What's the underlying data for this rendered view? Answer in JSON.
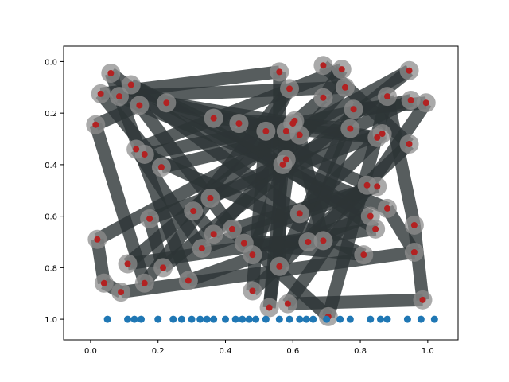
{
  "chart_data": {
    "type": "scatter",
    "title": "",
    "xlabel": "",
    "ylabel": "",
    "xlim": [
      -0.08,
      1.09
    ],
    "ylim": [
      1.08,
      -0.06
    ],
    "y_inverted": true,
    "grid": false,
    "x_ticks": [
      "0.0",
      "0.2",
      "0.4",
      "0.6",
      "0.8",
      "1.0"
    ],
    "y_ticks": [
      "0.0",
      "0.2",
      "0.4",
      "0.6",
      "0.8",
      "1.0"
    ],
    "colors": {
      "path_line": "#2d3436",
      "node_halo": "#8e8e8e",
      "node_dot": "#b22222",
      "baseline_dot": "#1f77b4"
    },
    "path_nodes": [
      [
        0.69,
        0.015
      ],
      [
        0.945,
        0.32
      ],
      [
        0.48,
        0.89
      ],
      [
        0.52,
        0.27
      ],
      [
        0.59,
        0.105
      ],
      [
        0.305,
        0.58
      ],
      [
        0.365,
        0.67
      ],
      [
        0.755,
        0.1
      ],
      [
        0.085,
        0.135
      ],
      [
        0.88,
        0.57
      ],
      [
        0.96,
        0.74
      ],
      [
        0.09,
        0.895
      ],
      [
        0.04,
        0.86
      ],
      [
        0.02,
        0.69
      ],
      [
        0.945,
        0.035
      ],
      [
        0.215,
        0.8
      ],
      [
        0.175,
        0.61
      ],
      [
        0.865,
        0.28
      ],
      [
        0.62,
        0.59
      ],
      [
        0.06,
        0.045
      ],
      [
        0.29,
        0.85
      ],
      [
        0.83,
        0.6
      ],
      [
        0.12,
        0.09
      ],
      [
        0.58,
        0.38
      ],
      [
        0.48,
        0.75
      ],
      [
        0.145,
        0.17
      ],
      [
        0.015,
        0.245
      ],
      [
        0.16,
        0.86
      ],
      [
        0.355,
        0.53
      ],
      [
        0.95,
        0.15
      ],
      [
        0.16,
        0.36
      ],
      [
        0.81,
        0.75
      ],
      [
        0.455,
        0.705
      ],
      [
        0.69,
        0.695
      ],
      [
        0.62,
        0.285
      ],
      [
        0.21,
        0.41
      ],
      [
        0.03,
        0.125
      ],
      [
        0.56,
        0.04
      ],
      [
        0.56,
        0.795
      ],
      [
        0.78,
        0.185
      ],
      [
        0.995,
        0.16
      ],
      [
        0.585,
        0.94
      ],
      [
        0.985,
        0.925
      ],
      [
        0.96,
        0.635
      ],
      [
        0.88,
        0.135
      ],
      [
        0.705,
        0.99
      ],
      [
        0.42,
        0.65
      ],
      [
        0.85,
        0.485
      ],
      [
        0.33,
        0.725
      ],
      [
        0.135,
        0.34
      ],
      [
        0.745,
        0.03
      ],
      [
        0.69,
        0.14
      ],
      [
        0.11,
        0.785
      ],
      [
        0.845,
        0.65
      ],
      [
        0.365,
        0.22
      ],
      [
        0.77,
        0.26
      ],
      [
        0.645,
        0.7
      ],
      [
        0.82,
        0.48
      ],
      [
        0.44,
        0.24
      ],
      [
        0.85,
        0.295
      ],
      [
        0.6,
        0.24
      ],
      [
        0.225,
        0.16
      ],
      [
        0.58,
        0.27
      ],
      [
        0.53,
        0.955
      ],
      [
        0.605,
        0.23
      ],
      [
        0.57,
        0.4
      ]
    ],
    "baseline_points": {
      "y": 1.0,
      "x": [
        0.05,
        0.11,
        0.13,
        0.15,
        0.2,
        0.245,
        0.27,
        0.3,
        0.325,
        0.345,
        0.365,
        0.4,
        0.43,
        0.45,
        0.47,
        0.49,
        0.52,
        0.56,
        0.59,
        0.62,
        0.64,
        0.66,
        0.7,
        0.74,
        0.77,
        0.83,
        0.86,
        0.88,
        0.94,
        0.98,
        1.02
      ]
    }
  }
}
